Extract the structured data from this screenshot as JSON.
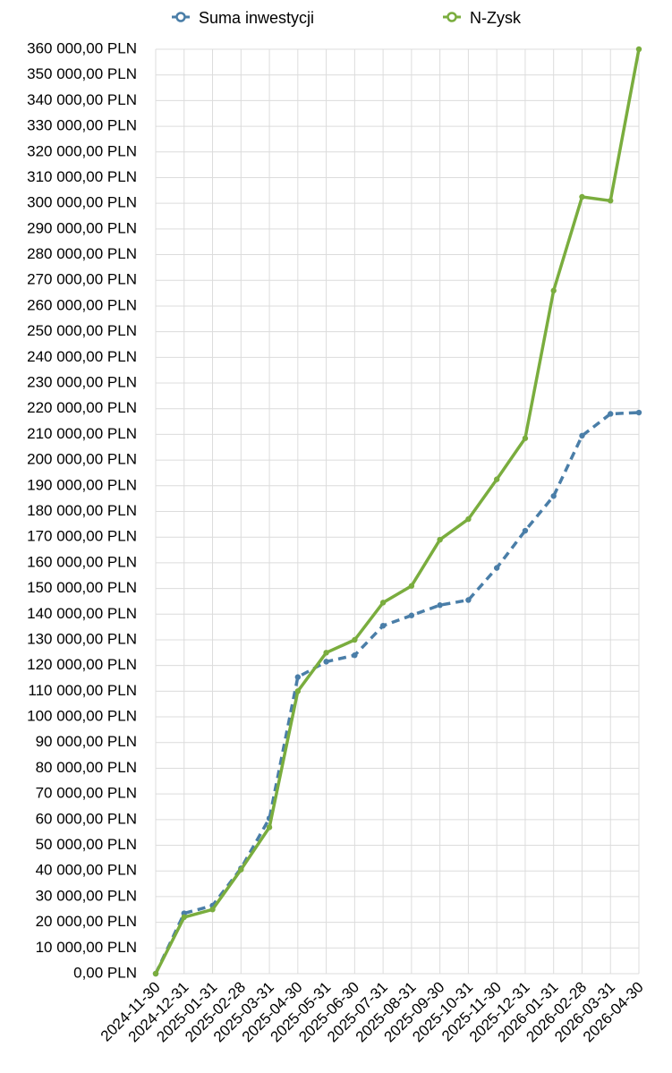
{
  "chart_data": {
    "type": "line",
    "title": "",
    "xlabel": "",
    "ylabel": "",
    "ylim": [
      0,
      360000
    ],
    "ytick_step": 10000,
    "grid": true,
    "legend_position": "top",
    "x": [
      "2024-11-30",
      "2024-12-31",
      "2025-01-31",
      "2025-02-28",
      "2025-03-31",
      "2025-04-30",
      "2025-05-31",
      "2025-06-30",
      "2025-07-31",
      "2025-08-31",
      "2025-09-30",
      "2025-10-31",
      "2025-11-30",
      "2025-12-31",
      "2026-01-31",
      "2026-02-28",
      "2026-03-31",
      "2026-04-30"
    ],
    "yticks": [
      "0,00 PLN",
      "10 000,00 PLN",
      "20 000,00 PLN",
      "30 000,00 PLN",
      "40 000,00 PLN",
      "50 000,00 PLN",
      "60 000,00 PLN",
      "70 000,00 PLN",
      "80 000,00 PLN",
      "90 000,00 PLN",
      "100 000,00 PLN",
      "110 000,00 PLN",
      "120 000,00 PLN",
      "130 000,00 PLN",
      "140 000,00 PLN",
      "150 000,00 PLN",
      "160 000,00 PLN",
      "170 000,00 PLN",
      "180 000,00 PLN",
      "190 000,00 PLN",
      "200 000,00 PLN",
      "210 000,00 PLN",
      "220 000,00 PLN",
      "230 000,00 PLN",
      "240 000,00 PLN",
      "250 000,00 PLN",
      "260 000,00 PLN",
      "270 000,00 PLN",
      "280 000,00 PLN",
      "290 000,00 PLN",
      "300 000,00 PLN",
      "310 000,00 PLN",
      "320 000,00 PLN",
      "330 000,00 PLN",
      "340 000,00 PLN",
      "350 000,00 PLN",
      "360 000,00 PLN"
    ],
    "series": [
      {
        "name": "Suma inwestycji",
        "color": "#4a7ea8",
        "style": "dashed",
        "values": [
          0,
          23500,
          26500,
          41000,
          60500,
          115500,
          121500,
          124000,
          135500,
          139500,
          143500,
          145500,
          158000,
          172500,
          186000,
          209500,
          218000,
          218500
        ]
      },
      {
        "name": "N-Zysk",
        "color": "#7aad3e",
        "style": "solid",
        "values": [
          0,
          22000,
          25000,
          40500,
          57000,
          110000,
          125000,
          130000,
          144500,
          151000,
          169000,
          177000,
          192500,
          208500,
          266000,
          302500,
          301000,
          360000
        ]
      }
    ]
  }
}
